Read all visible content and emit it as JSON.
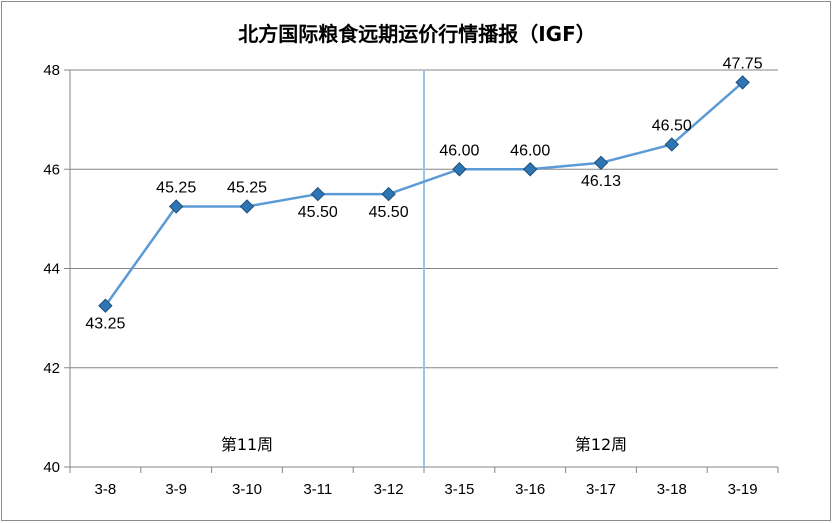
{
  "chart_data": {
    "type": "line",
    "title": "北方国际粮食远期运价行情播报（IGF）",
    "categories": [
      "3-8",
      "3-9",
      "3-10",
      "3-11",
      "3-12",
      "3-15",
      "3-16",
      "3-17",
      "3-18",
      "3-19"
    ],
    "series": [
      {
        "values": [
          43.25,
          45.25,
          45.25,
          45.5,
          45.5,
          46.0,
          46.0,
          46.13,
          46.5,
          47.75
        ],
        "value_labels": [
          "43.25",
          "45.25",
          "45.25",
          "45.50",
          "45.50",
          "46.00",
          "46.00",
          "46.13",
          "46.50",
          "47.75"
        ],
        "label_position": [
          "below",
          "above",
          "above",
          "below",
          "below",
          "above",
          "above",
          "below",
          "above",
          "above"
        ],
        "color": "#5b9bd5",
        "marker": "diamond"
      }
    ],
    "ylim": [
      40,
      48
    ],
    "yticks": [
      "40",
      "42",
      "44",
      "46",
      "48"
    ],
    "grid": true,
    "xlabel": "",
    "ylabel": "",
    "divider_after_category_index": 4,
    "week_labels": [
      "第11周",
      "第12周"
    ],
    "divider_color": "#9dc3e6",
    "grid_color": "#868686"
  }
}
